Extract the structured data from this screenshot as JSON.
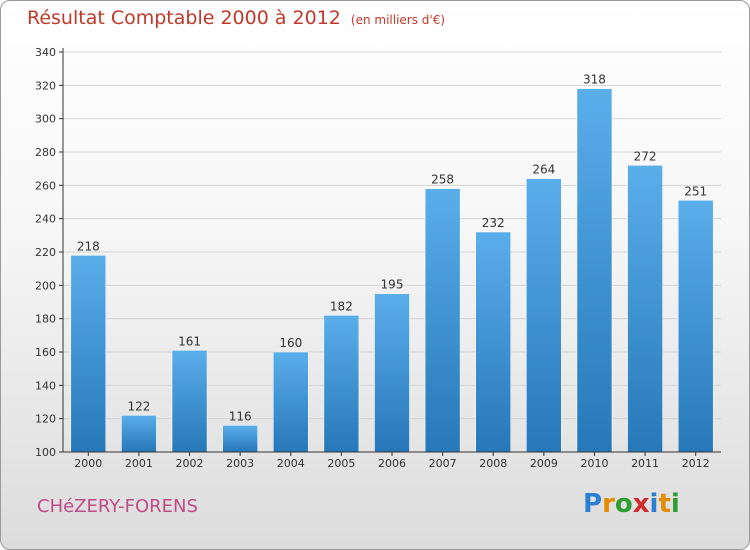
{
  "header": {
    "title": "Résultat Comptable 2000 à 2012",
    "subtitle": "(en milliers d'€)"
  },
  "footer": {
    "place": "CHéZERY-FORENS",
    "logo_letters": [
      "P",
      "r",
      "o",
      "x",
      "i",
      "t",
      "i"
    ]
  },
  "colors": {
    "title": "#c0392b",
    "place": "#c24a86",
    "bar_top": "#5aaeea",
    "bar_bottom": "#2678b8",
    "grid": "#d4d4d4",
    "axis": "#333333"
  },
  "chart_data": {
    "type": "bar",
    "title": "Résultat Comptable 2000 à 2012",
    "subtitle": "(en milliers d'€)",
    "xlabel": "",
    "ylabel": "",
    "ylim": [
      100,
      340
    ],
    "yticks": [
      100,
      120,
      140,
      160,
      180,
      200,
      220,
      240,
      260,
      280,
      300,
      320,
      340
    ],
    "grid": true,
    "categories": [
      "2000",
      "2001",
      "2002",
      "2003",
      "2004",
      "2005",
      "2006",
      "2007",
      "2008",
      "2009",
      "2010",
      "2011",
      "2012"
    ],
    "values": [
      218,
      122,
      161,
      116,
      160,
      182,
      195,
      258,
      232,
      264,
      318,
      272,
      251
    ]
  }
}
